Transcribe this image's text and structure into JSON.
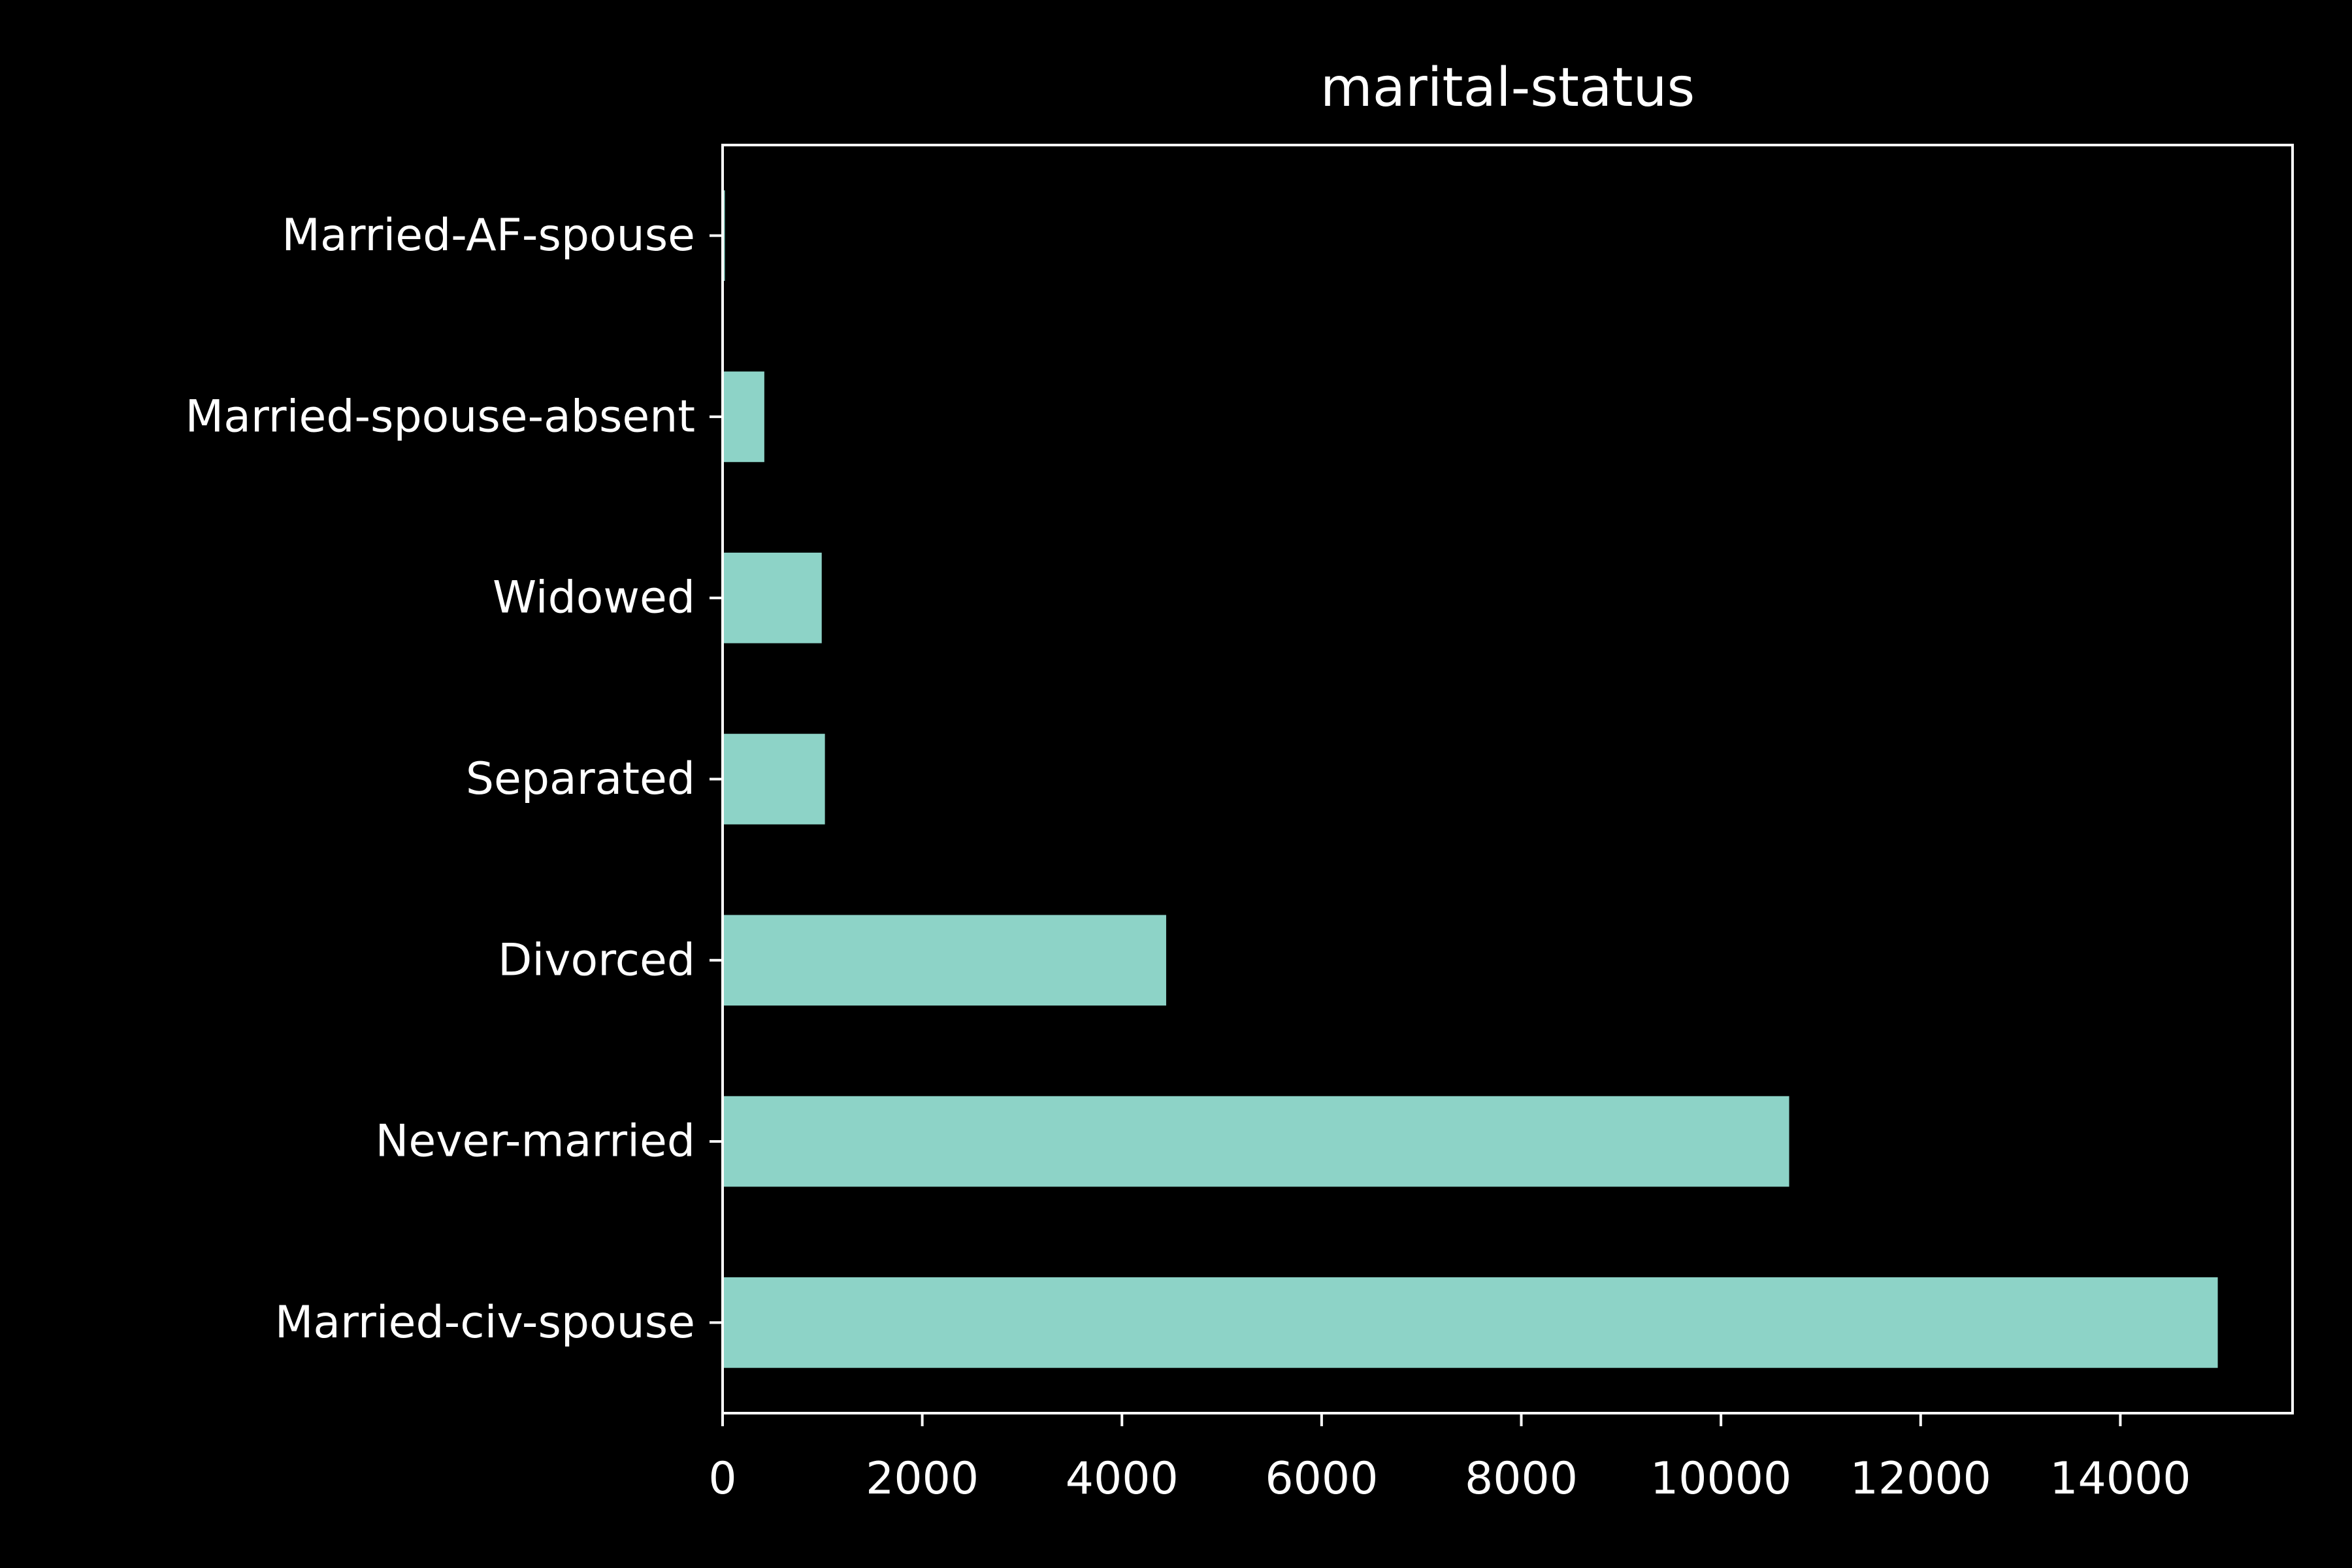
{
  "chart_data": {
    "type": "bar",
    "orientation": "horizontal",
    "title": "marital-status",
    "xlabel": "",
    "ylabel": "",
    "categories": [
      "Married-civ-spouse",
      "Never-married",
      "Divorced",
      "Separated",
      "Widowed",
      "Married-spouse-absent",
      "Married-AF-spouse"
    ],
    "values": [
      14976,
      10683,
      4443,
      1025,
      993,
      418,
      23
    ],
    "xlim": [
      0,
      15725
    ],
    "xticks": [
      0,
      2000,
      4000,
      6000,
      8000,
      10000,
      12000,
      14000
    ],
    "grid": false,
    "bar_color": "#8dd3c7",
    "background_color": "#000000",
    "foreground_color": "#ffffff"
  }
}
